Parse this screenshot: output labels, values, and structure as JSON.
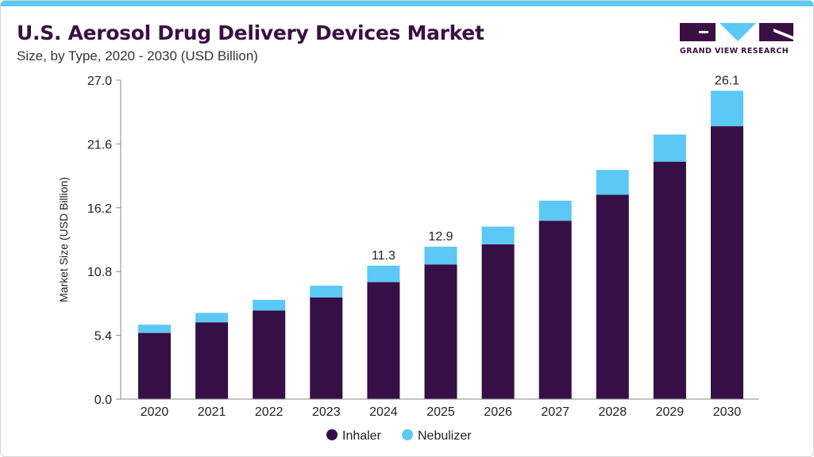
{
  "header": {
    "title": "U.S. Aerosol Drug Delivery Devices Market",
    "subtitle": "Size, by Type, 2020 - 2030 (USD Billion)"
  },
  "brand": {
    "name": "GRAND VIEW RESEARCH",
    "primary_color": "#3a1042",
    "accent_color": "#5bc8f5"
  },
  "chart_data": {
    "type": "bar",
    "stacked": true,
    "categories": [
      "2020",
      "2021",
      "2022",
      "2023",
      "2024",
      "2025",
      "2026",
      "2027",
      "2028",
      "2029",
      "2030"
    ],
    "series": [
      {
        "name": "Inhaler",
        "color": "#350f45",
        "values": [
          5.6,
          6.5,
          7.5,
          8.6,
          9.9,
          11.4,
          13.1,
          15.1,
          17.3,
          20.1,
          23.1
        ]
      },
      {
        "name": "Nebulizer",
        "color": "#5bc8f5",
        "values": [
          0.7,
          0.8,
          0.9,
          1.0,
          1.4,
          1.5,
          1.5,
          1.7,
          2.1,
          2.3,
          3.0
        ]
      }
    ],
    "data_labels": [
      {
        "category": "2024",
        "text": "11.3"
      },
      {
        "category": "2025",
        "text": "12.9"
      },
      {
        "category": "2030",
        "text": "26.1"
      }
    ],
    "ylabel": "Market Size (USD Billion)",
    "xlabel": "",
    "ylim": [
      0,
      27.0
    ],
    "yticks": [
      "0.0",
      "5.4",
      "10.8",
      "16.2",
      "21.6",
      "27.0"
    ],
    "grid": false,
    "legend_position": "bottom-center"
  }
}
